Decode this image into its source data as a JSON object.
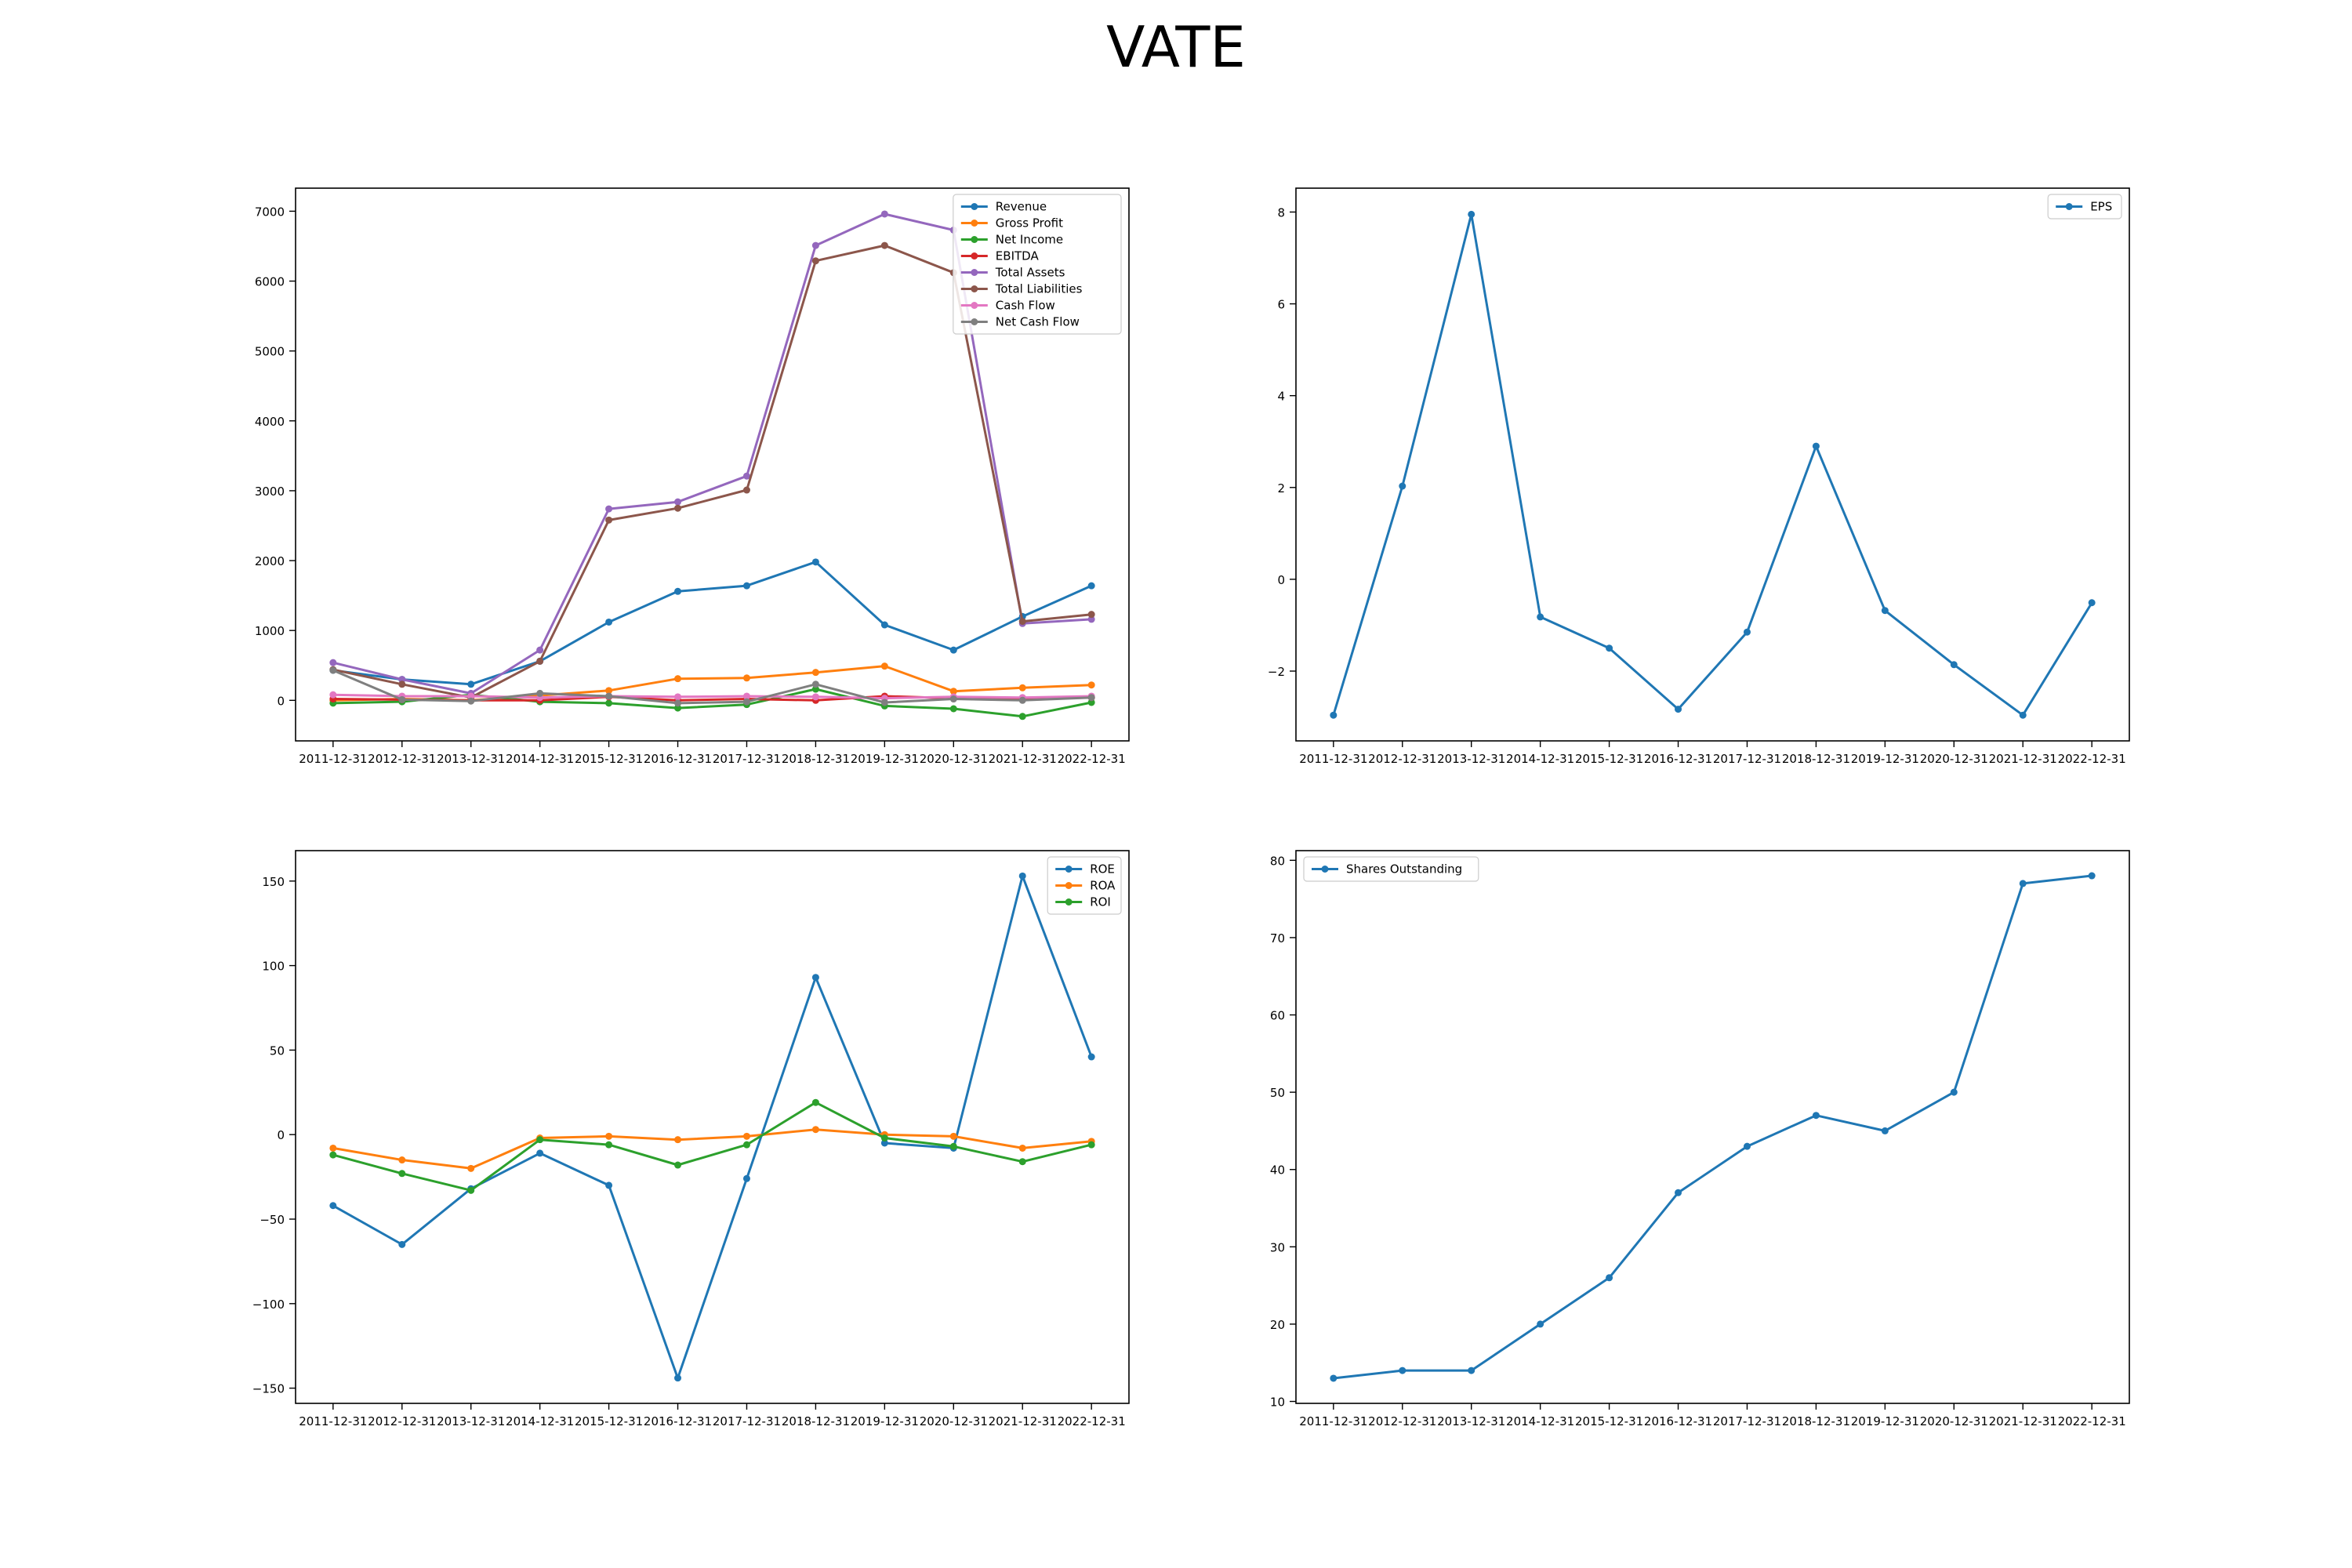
{
  "title": "VATE",
  "colors": {
    "blue": "#1f77b4",
    "orange": "#ff7f0e",
    "green": "#2ca02c",
    "red": "#d62728",
    "purple": "#9467bd",
    "brown": "#8c564b",
    "pink": "#e377c2",
    "gray": "#7f7f7f"
  },
  "chart_data": [
    {
      "type": "line",
      "categories": [
        "2011-12-31",
        "2012-12-31",
        "2013-12-31",
        "2014-12-31",
        "2015-12-31",
        "2016-12-31",
        "2017-12-31",
        "2018-12-31",
        "2019-12-31",
        "2020-12-31",
        "2021-12-31",
        "2022-12-31"
      ],
      "ylim": [
        -580,
        7330
      ],
      "yticks": [
        0,
        1000,
        2000,
        3000,
        4000,
        5000,
        6000,
        7000
      ],
      "legend": "upper right",
      "series": [
        {
          "name": "Revenue",
          "color": "#1f77b4",
          "values": [
            430,
            300,
            230,
            560,
            1120,
            1560,
            1640,
            1980,
            1080,
            720,
            1200,
            1640
          ]
        },
        {
          "name": "Gross Profit",
          "color": "#ff7f0e",
          "values": [
            0,
            20,
            0,
            70,
            140,
            310,
            320,
            400,
            490,
            130,
            180,
            220
          ]
        },
        {
          "name": "Net Income",
          "color": "#2ca02c",
          "values": [
            -40,
            -20,
            80,
            -20,
            -40,
            -110,
            -60,
            160,
            -80,
            -120,
            -230,
            -30
          ]
        },
        {
          "name": "EBITDA",
          "color": "#d62728",
          "values": [
            20,
            10,
            0,
            0,
            50,
            0,
            20,
            0,
            60,
            30,
            20,
            40
          ]
        },
        {
          "name": "Total Assets",
          "color": "#9467bd",
          "values": [
            540,
            300,
            100,
            720,
            2740,
            2840,
            3210,
            6510,
            6960,
            6730,
            1100,
            1160
          ]
        },
        {
          "name": "Total Liabilities",
          "color": "#8c564b",
          "values": [
            440,
            230,
            40,
            560,
            2580,
            2750,
            3010,
            6290,
            6510,
            6120,
            1130,
            1230
          ]
        },
        {
          "name": "Cash Flow",
          "color": "#e377c2",
          "values": [
            80,
            60,
            60,
            40,
            60,
            50,
            60,
            50,
            30,
            50,
            40,
            60
          ]
        },
        {
          "name": "Net Cash Flow",
          "color": "#7f7f7f",
          "values": [
            430,
            10,
            -10,
            100,
            60,
            -40,
            -20,
            230,
            -30,
            20,
            0,
            40
          ]
        }
      ]
    },
    {
      "type": "line",
      "categories": [
        "2011-12-31",
        "2012-12-31",
        "2013-12-31",
        "2014-12-31",
        "2015-12-31",
        "2016-12-31",
        "2017-12-31",
        "2018-12-31",
        "2019-12-31",
        "2020-12-31",
        "2021-12-31",
        "2022-12-31"
      ],
      "ylim": [
        -3.52,
        8.52
      ],
      "yticks": [
        -2,
        0,
        2,
        4,
        6,
        8
      ],
      "legend": "upper right",
      "series": [
        {
          "name": "EPS",
          "color": "#1f77b4",
          "values": [
            -2.96,
            2.03,
            7.95,
            -0.82,
            -1.5,
            -2.83,
            -1.15,
            2.9,
            -0.68,
            -1.86,
            -2.96,
            -0.51
          ]
        }
      ]
    },
    {
      "type": "line",
      "categories": [
        "2011-12-31",
        "2012-12-31",
        "2013-12-31",
        "2014-12-31",
        "2015-12-31",
        "2016-12-31",
        "2017-12-31",
        "2018-12-31",
        "2019-12-31",
        "2020-12-31",
        "2021-12-31",
        "2022-12-31"
      ],
      "ylim": [
        -159,
        168
      ],
      "yticks": [
        -150,
        -100,
        -50,
        0,
        50,
        100,
        150
      ],
      "legend": "upper right",
      "series": [
        {
          "name": "ROE",
          "color": "#1f77b4",
          "values": [
            -42,
            -65,
            -32,
            -11,
            -30,
            -144,
            -26,
            93,
            -5,
            -8,
            153,
            46
          ]
        },
        {
          "name": "ROA",
          "color": "#ff7f0e",
          "values": [
            -8,
            -15,
            -20,
            -2,
            -1,
            -3,
            -1,
            3,
            0,
            -1,
            -8,
            -4
          ]
        },
        {
          "name": "ROI",
          "color": "#2ca02c",
          "values": [
            -12,
            -23,
            -33,
            -3,
            -6,
            -18,
            -6,
            19,
            -2,
            -7,
            -16,
            -6
          ]
        }
      ]
    },
    {
      "type": "line",
      "categories": [
        "2011-12-31",
        "2012-12-31",
        "2013-12-31",
        "2014-12-31",
        "2015-12-31",
        "2016-12-31",
        "2017-12-31",
        "2018-12-31",
        "2019-12-31",
        "2020-12-31",
        "2021-12-31",
        "2022-12-31"
      ],
      "ylim": [
        9.75,
        81.25
      ],
      "yticks": [
        10,
        20,
        30,
        40,
        50,
        60,
        70,
        80
      ],
      "legend": "upper left",
      "series": [
        {
          "name": "Shares Outstanding",
          "color": "#1f77b4",
          "values": [
            13,
            14,
            14,
            20,
            26,
            37,
            43,
            47,
            45,
            50,
            77,
            78
          ]
        }
      ]
    }
  ]
}
